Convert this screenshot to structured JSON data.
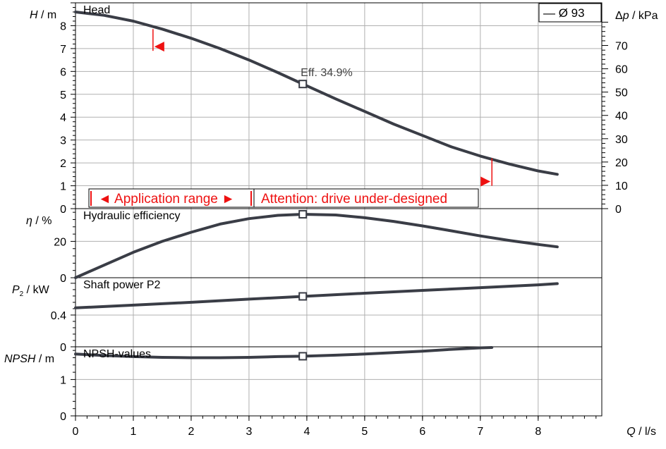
{
  "chart_data": {
    "type": "line",
    "x": {
      "label": "Q / l/s",
      "ticks": [
        0,
        1,
        2,
        3,
        4,
        5,
        6,
        7,
        8
      ],
      "range": [
        0,
        9.1
      ]
    },
    "legend": {
      "label": "— Ø 93",
      "position": "top-right"
    },
    "operating_point_x": 3.93,
    "panels": [
      {
        "id": "head",
        "title": "Head",
        "ylabel": "H / m",
        "ylabel_italic": "H",
        "ylabel_unit": " / m",
        "ylim": [
          0,
          9
        ],
        "yticks": [
          0,
          1,
          2,
          3,
          4,
          5,
          6,
          7,
          8
        ],
        "secondary_ylabel": "Δp / kPa",
        "secondary_ylabel_italic": "p",
        "secondary_ylim": [
          0,
          88.3
        ],
        "secondary_yticks": [
          0,
          10,
          20,
          30,
          40,
          50,
          60,
          70
        ],
        "series": [
          {
            "name": "Ø 93",
            "points": [
              [
                0,
                8.6
              ],
              [
                0.5,
                8.45
              ],
              [
                1,
                8.2
              ],
              [
                1.5,
                7.85
              ],
              [
                2,
                7.45
              ],
              [
                2.5,
                7.0
              ],
              [
                3,
                6.5
              ],
              [
                3.5,
                5.95
              ],
              [
                3.93,
                5.45
              ],
              [
                4.5,
                4.8
              ],
              [
                5,
                4.25
              ],
              [
                5.5,
                3.7
              ],
              [
                6,
                3.2
              ],
              [
                6.5,
                2.7
              ],
              [
                7,
                2.3
              ],
              [
                7.5,
                1.95
              ],
              [
                8,
                1.65
              ],
              [
                8.33,
                1.5
              ]
            ]
          }
        ],
        "annotations": [
          {
            "text": "Eff.  34.9%",
            "x": 3.93,
            "y": 5.45
          }
        ],
        "range_markers": [
          {
            "x": 1.34,
            "y_top": 7.85,
            "y_bottom": 6.9,
            "arrow": "left"
          },
          {
            "x": 7.2,
            "y_top": 2.2,
            "y_bottom": 1.0,
            "arrow": "right"
          }
        ]
      },
      {
        "id": "efficiency",
        "title": "Hydraulic efficiency",
        "ylabel": "η / %",
        "ylabel_italic": "η",
        "ylabel_unit": " / %",
        "ylim": [
          0,
          38
        ],
        "yticks": [
          0,
          20
        ],
        "series": [
          {
            "name": "Ø 93",
            "points": [
              [
                0,
                0
              ],
              [
                0.5,
                7
              ],
              [
                1,
                14
              ],
              [
                1.5,
                20
              ],
              [
                2,
                25
              ],
              [
                2.5,
                29.5
              ],
              [
                3,
                32.5
              ],
              [
                3.5,
                34.3
              ],
              [
                3.93,
                34.9
              ],
              [
                4.5,
                34.5
              ],
              [
                5,
                33
              ],
              [
                5.5,
                31
              ],
              [
                6,
                28.5
              ],
              [
                6.5,
                25.8
              ],
              [
                7,
                23
              ],
              [
                7.5,
                20.5
              ],
              [
                8,
                18.3
              ],
              [
                8.33,
                17
              ]
            ]
          }
        ]
      },
      {
        "id": "power",
        "title": "Shaft power P2",
        "ylabel": "P₂ / kW",
        "ylabel_italic": "P₂",
        "ylabel_unit": " / kW",
        "ylim": [
          0,
          0.87
        ],
        "yticks": [
          0,
          0.4
        ],
        "series": [
          {
            "name": "Ø 93",
            "points": [
              [
                0,
                0.49
              ],
              [
                1,
                0.525
              ],
              [
                2,
                0.56
              ],
              [
                3,
                0.6
              ],
              [
                3.93,
                0.635
              ],
              [
                5,
                0.675
              ],
              [
                6,
                0.71
              ],
              [
                7,
                0.745
              ],
              [
                8,
                0.78
              ],
              [
                8.33,
                0.795
              ]
            ]
          }
        ]
      },
      {
        "id": "npsh",
        "title": "NPSH-values",
        "ylabel": "NPSH / m",
        "ylabel_italic": "NPSH",
        "ylabel_unit": " / m",
        "ylim": [
          0,
          1.9
        ],
        "yticks": [
          0,
          1
        ],
        "series": [
          {
            "name": "Ø 93",
            "points": [
              [
                0,
                1.7
              ],
              [
                0.5,
                1.66
              ],
              [
                1,
                1.63
              ],
              [
                1.5,
                1.61
              ],
              [
                2,
                1.6
              ],
              [
                2.5,
                1.6
              ],
              [
                3,
                1.61
              ],
              [
                3.5,
                1.63
              ],
              [
                3.93,
                1.64
              ],
              [
                4.5,
                1.67
              ],
              [
                5,
                1.7
              ],
              [
                5.5,
                1.74
              ],
              [
                6,
                1.78
              ],
              [
                6.5,
                1.83
              ],
              [
                7,
                1.87
              ],
              [
                7.2,
                1.88
              ]
            ]
          }
        ]
      }
    ]
  },
  "range_labels": {
    "application": "◄ Application range ►",
    "attention": "Attention: drive under-designed"
  },
  "colors": {
    "curve": "#3a3d46",
    "grid": "#b0b0b0",
    "axis": "#000000",
    "warning": "#ee1111"
  }
}
